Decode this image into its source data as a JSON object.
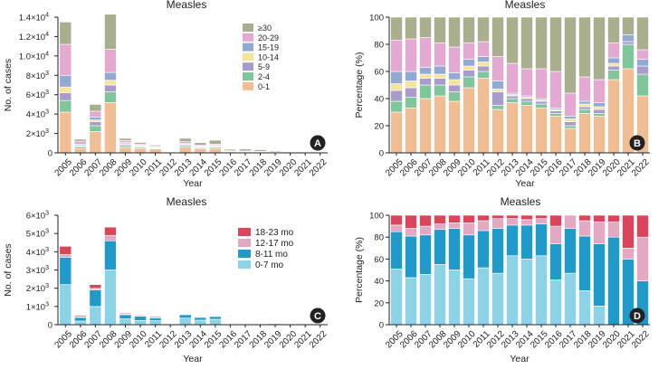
{
  "chart_data": [
    {
      "panel": "A",
      "type": "bar",
      "stacked": true,
      "title": "Measles",
      "xlabel": "Year",
      "ylabel": "No. of cases",
      "ylim": [
        0,
        14000
      ],
      "yticks": [
        {
          "value": 0,
          "label": "0"
        },
        {
          "value": 2000,
          "base": "2×10",
          "exp": "3"
        },
        {
          "value": 4000,
          "base": "4×10",
          "exp": "3"
        },
        {
          "value": 6000,
          "base": "6×10",
          "exp": "3"
        },
        {
          "value": 8000,
          "base": "8×10",
          "exp": "3"
        },
        {
          "value": 10000,
          "base": "1.0×10",
          "exp": "4"
        },
        {
          "value": 12000,
          "base": "1.2×10",
          "exp": "4"
        },
        {
          "value": 14000,
          "base": "1.4×10",
          "exp": "4"
        }
      ],
      "categories": [
        "2005",
        "2006",
        "2007",
        "2008",
        "2009",
        "2010",
        "2011",
        "2012",
        "2013",
        "2014",
        "2015",
        "2016",
        "2017",
        "2018",
        "2019",
        "2020",
        "2021",
        "2022"
      ],
      "legend_position": "top-right",
      "series": [
        {
          "name": "0-1",
          "color": "#f1bd93",
          "values": [
            4200,
            450,
            2200,
            5200,
            560,
            460,
            400,
            0,
            580,
            420,
            450,
            100,
            80,
            70,
            60,
            20,
            3,
            4
          ]
        },
        {
          "name": "2-4",
          "color": "#7fc69a",
          "values": [
            1200,
            150,
            600,
            1100,
            170,
            110,
            60,
            0,
            150,
            100,
            120,
            20,
            20,
            15,
            12,
            3,
            1,
            1
          ]
        },
        {
          "name": "5-9",
          "color": "#a99ccc",
          "values": [
            800,
            100,
            400,
            700,
            120,
            90,
            60,
            0,
            100,
            80,
            80,
            20,
            20,
            15,
            12,
            2,
            0,
            0
          ]
        },
        {
          "name": "10-14",
          "color": "#f5e49e",
          "values": [
            600,
            80,
            200,
            500,
            100,
            70,
            40,
            0,
            80,
            60,
            60,
            15,
            15,
            10,
            8,
            2,
            0,
            0
          ]
        },
        {
          "name": "15-19",
          "color": "#92a9d4",
          "values": [
            1200,
            120,
            300,
            800,
            120,
            70,
            50,
            0,
            90,
            60,
            70,
            20,
            20,
            15,
            10,
            2,
            0,
            0
          ]
        },
        {
          "name": "20-29",
          "color": "#e3a9d0",
          "values": [
            3200,
            300,
            600,
            2400,
            200,
            110,
            80,
            0,
            150,
            100,
            120,
            40,
            40,
            35,
            25,
            5,
            0,
            1
          ]
        },
        {
          "name": "≥30",
          "color": "#a9ae8f",
          "values": [
            2300,
            200,
            700,
            3600,
            230,
            160,
            110,
            0,
            350,
            230,
            400,
            150,
            205,
            160,
            94,
            16,
            0,
            2
          ]
        }
      ],
      "legend_order": [
        "≥30",
        "20-29",
        "15-19",
        "10-14",
        "5-9",
        "2-4",
        "0-1"
      ]
    },
    {
      "panel": "B",
      "type": "bar",
      "stacked": true,
      "title": "Measles",
      "xlabel": "",
      "ylabel": "Percentage (%)",
      "ylim": [
        0,
        100
      ],
      "yticks": [
        {
          "value": 0,
          "label": "0"
        },
        {
          "value": 20,
          "label": "20"
        },
        {
          "value": 40,
          "label": "40"
        },
        {
          "value": 60,
          "label": "60"
        },
        {
          "value": 80,
          "label": "80"
        },
        {
          "value": 100,
          "label": "100"
        }
      ],
      "categories": [
        "2005",
        "2006",
        "2007",
        "2008",
        "2009",
        "2010",
        "2011",
        "2012",
        "2013",
        "2014",
        "2015",
        "2016",
        "2017",
        "2018",
        "2019",
        "2020",
        "2021",
        "2022"
      ],
      "series": [
        {
          "name": "0-1",
          "color": "#f1bd93",
          "values": [
            30,
            33,
            40,
            42,
            38,
            48,
            55,
            32,
            37,
            35,
            33,
            27,
            18,
            29,
            27,
            54,
            62,
            42
          ]
        },
        {
          "name": "2-4",
          "color": "#7fc69a",
          "values": [
            8,
            8,
            10,
            8,
            7,
            8,
            5,
            3,
            3,
            3,
            3,
            2,
            2,
            3,
            2,
            7,
            18,
            16
          ]
        },
        {
          "name": "5-9",
          "color": "#a99ccc",
          "values": [
            8,
            7,
            5,
            5,
            5,
            5,
            4,
            10,
            2,
            2,
            2,
            2,
            3,
            2,
            3,
            3,
            2,
            6
          ]
        },
        {
          "name": "10-14",
          "color": "#f5e49e",
          "values": [
            5,
            5,
            3,
            3,
            4,
            3,
            3,
            2,
            1,
            1,
            1,
            1,
            2,
            2,
            2,
            2,
            0,
            0
          ]
        },
        {
          "name": "15-19",
          "color": "#92a9d4",
          "values": [
            9,
            7,
            5,
            6,
            5,
            5,
            4,
            6,
            1,
            1,
            1,
            1,
            2,
            2,
            3,
            4,
            5,
            5
          ]
        },
        {
          "name": "20-29",
          "color": "#e3a9d0",
          "values": [
            23,
            24,
            22,
            17,
            19,
            12,
            11,
            18,
            22,
            20,
            22,
            27,
            17,
            18,
            17,
            11,
            0,
            7
          ]
        },
        {
          "name": "≥30",
          "color": "#a9ae8f",
          "values": [
            17,
            16,
            15,
            19,
            22,
            19,
            18,
            29,
            34,
            38,
            38,
            40,
            56,
            44,
            46,
            19,
            13,
            24
          ]
        }
      ]
    },
    {
      "panel": "C",
      "type": "bar",
      "stacked": true,
      "title": "Measles",
      "xlabel": "Year",
      "ylabel": "No. of cases",
      "ylim": [
        0,
        6000
      ],
      "yticks": [
        {
          "value": 0,
          "label": "0"
        },
        {
          "value": 1000,
          "base": "1×10",
          "exp": "3"
        },
        {
          "value": 2000,
          "base": "2×10",
          "exp": "3"
        },
        {
          "value": 3000,
          "base": "3×10",
          "exp": "3"
        },
        {
          "value": 4000,
          "base": "4×10",
          "exp": "3"
        },
        {
          "value": 5000,
          "base": "5×10",
          "exp": "3"
        },
        {
          "value": 6000,
          "base": "6×10",
          "exp": "3"
        }
      ],
      "categories": [
        "2005",
        "2006",
        "2007",
        "2008",
        "2009",
        "2010",
        "2011",
        "2012",
        "2013",
        "2014",
        "2015",
        "2016",
        "2017",
        "2018",
        "2019",
        "2020",
        "2021",
        "2022"
      ],
      "legend_position": "top-right",
      "series": [
        {
          "name": "0-7 mo",
          "color": "#8dd3e8",
          "values": [
            2200,
            200,
            1000,
            3000,
            320,
            230,
            220,
            0,
            360,
            250,
            300,
            40,
            40,
            30,
            15,
            4,
            0,
            0
          ]
        },
        {
          "name": "8-11 mo",
          "color": "#1f9ac9",
          "values": [
            1500,
            200,
            900,
            1600,
            230,
            230,
            150,
            0,
            190,
            150,
            150,
            30,
            35,
            30,
            40,
            8,
            1,
            1
          ]
        },
        {
          "name": "12-17 mo",
          "color": "#e3a9c2",
          "values": [
            150,
            40,
            90,
            300,
            30,
            40,
            40,
            0,
            30,
            20,
            30,
            10,
            10,
            10,
            15,
            1,
            1,
            1
          ]
        },
        {
          "name": "18-23 mo",
          "color": "#d9465b",
          "values": [
            450,
            60,
            210,
            450,
            50,
            40,
            50,
            0,
            20,
            20,
            20,
            10,
            0,
            5,
            5,
            1,
            1,
            1
          ]
        }
      ],
      "legend_order": [
        "18-23 mo",
        "12-17 mo",
        "8-11 mo",
        "0-7 mo"
      ]
    },
    {
      "panel": "D",
      "type": "bar",
      "stacked": true,
      "title": "Measles",
      "xlabel": "Year",
      "ylabel": "Percentage (%)",
      "ylim": [
        0,
        100
      ],
      "yticks": [
        {
          "value": 0,
          "label": "0"
        },
        {
          "value": 20,
          "label": "20"
        },
        {
          "value": 40,
          "label": "40"
        },
        {
          "value": 60,
          "label": "60"
        },
        {
          "value": 80,
          "label": "80"
        },
        {
          "value": 100,
          "label": "100"
        }
      ],
      "categories": [
        "2005",
        "2006",
        "2007",
        "2008",
        "2009",
        "2010",
        "2011",
        "2012",
        "2013",
        "2014",
        "2015",
        "2016",
        "2017",
        "2018",
        "2019",
        "2020",
        "2021",
        "2022"
      ],
      "series": [
        {
          "name": "0-7 mo",
          "color": "#8dd3e8",
          "values": [
            51,
            43,
            46,
            55,
            50,
            42,
            52,
            47,
            63,
            60,
            63,
            41,
            47,
            31,
            17,
            0,
            0,
            0
          ]
        },
        {
          "name": "8-11 mo",
          "color": "#1f9ac9",
          "values": [
            34,
            38,
            36,
            32,
            38,
            40,
            34,
            41,
            28,
            31,
            29,
            33,
            41,
            50,
            57,
            80,
            60,
            40
          ]
        },
        {
          "name": "12-17 mo",
          "color": "#e3a9c2",
          "values": [
            6,
            7,
            8,
            5,
            5,
            11,
            9,
            9,
            6,
            5,
            5,
            16,
            12,
            14,
            20,
            14,
            10,
            40
          ]
        },
        {
          "name": "18-23 mo",
          "color": "#d9465b",
          "values": [
            9,
            12,
            10,
            8,
            7,
            7,
            5,
            3,
            3,
            4,
            3,
            10,
            0,
            5,
            6,
            6,
            30,
            20
          ]
        }
      ]
    }
  ]
}
